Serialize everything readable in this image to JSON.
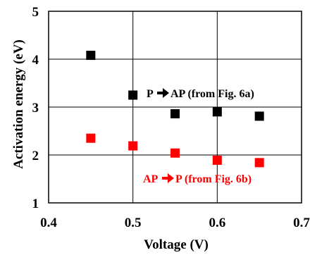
{
  "chart_data": {
    "type": "scatter",
    "xlabel": "Voltage (V)",
    "ylabel": "Activation energy (eV)",
    "xlim": [
      0.4,
      0.7
    ],
    "ylim": [
      1,
      5
    ],
    "x_ticks": [
      "0.4",
      "0.5",
      "0.6",
      "0.7"
    ],
    "y_ticks": [
      "1",
      "2",
      "3",
      "4",
      "5"
    ],
    "grid": true,
    "series": [
      {
        "color": "#000000",
        "marker": "square",
        "x": [
          0.45,
          0.5,
          0.55,
          0.6,
          0.65
        ],
        "y": [
          4.08,
          3.25,
          2.86,
          2.9,
          2.81
        ]
      },
      {
        "color": "#ff0000",
        "marker": "square",
        "x": [
          0.45,
          0.5,
          0.55,
          0.6,
          0.65
        ],
        "y": [
          2.35,
          2.19,
          2.04,
          1.89,
          1.84
        ]
      }
    ],
    "annotations": [
      {
        "pre": "P",
        "post": "AP (from Fig. 6a)",
        "arrow_icon": "right-arrow-icon",
        "color": "#000000"
      },
      {
        "pre": "AP",
        "post": "P (from Fig. 6b)",
        "arrow_icon": "right-arrow-icon",
        "color": "#ff0000"
      }
    ]
  }
}
